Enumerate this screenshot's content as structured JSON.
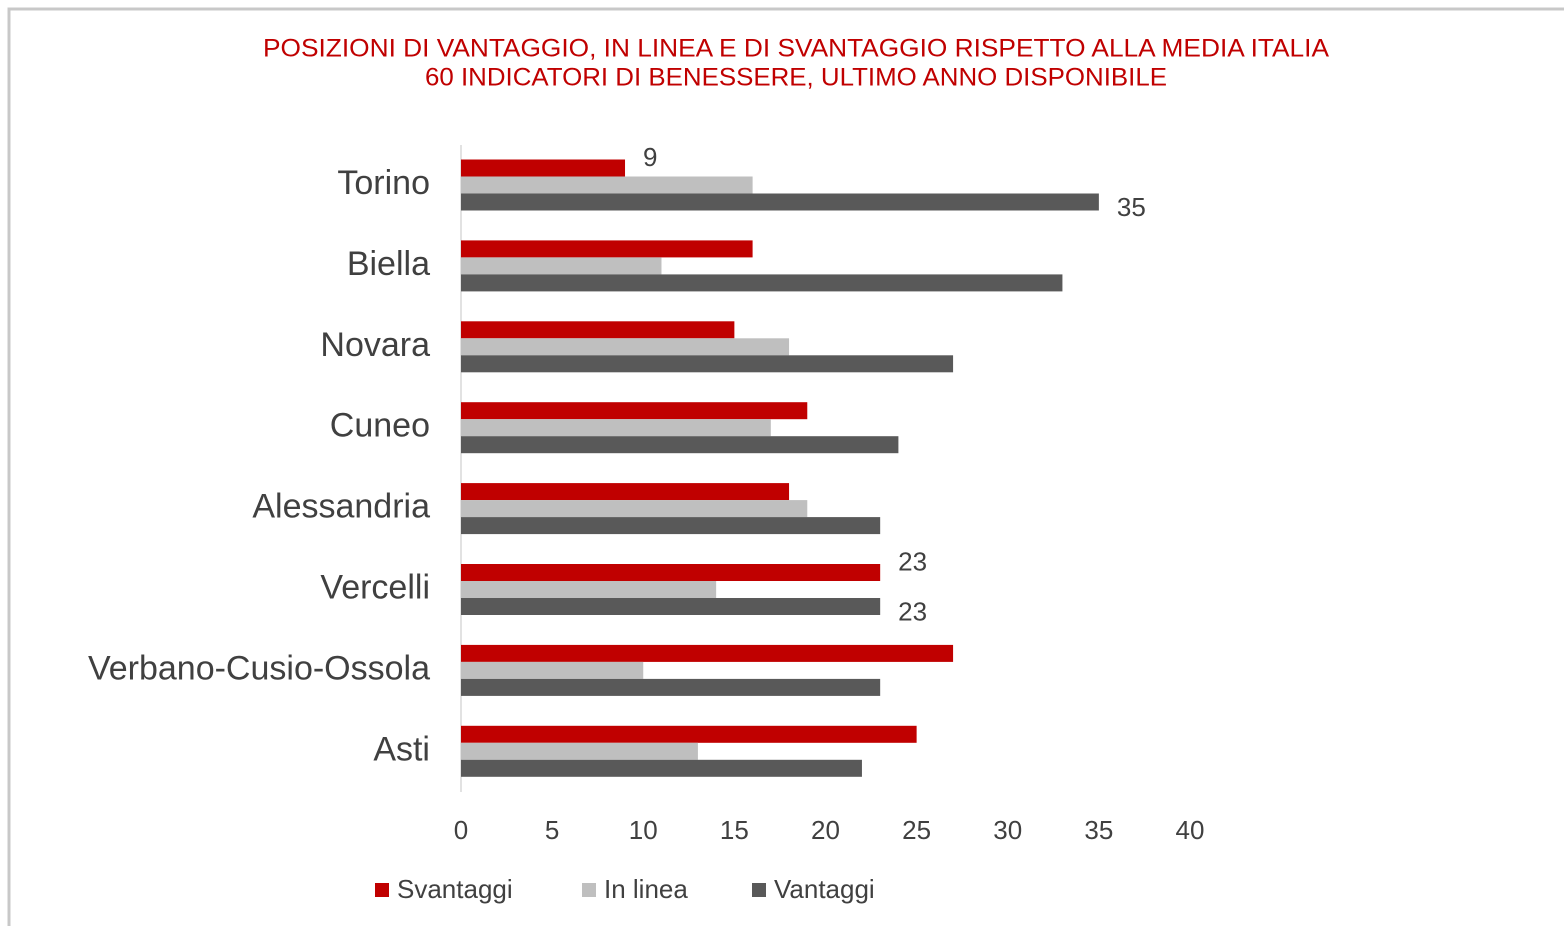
{
  "chart_data": {
    "type": "hbar",
    "title": "POSIZIONI DI VANTAGGIO, IN LINEA E DI SVANTAGGIO RISPETTO ALLA MEDIA ITALIA",
    "subtitle": "60 INDICATORI DI BENESSERE, ULTIMO ANNO DISPONIBILE",
    "categories": [
      "Torino",
      "Biella",
      "Novara",
      "Cuneo",
      "Alessandria",
      "Vercelli",
      "Verbano-Cusio-Ossola",
      "Asti"
    ],
    "series": [
      {
        "name": "Svantaggi",
        "color": "#c00000",
        "values": [
          9,
          16,
          15,
          19,
          18,
          23,
          27,
          25
        ],
        "value_labels": [
          "9",
          null,
          null,
          null,
          null,
          "23",
          null,
          null
        ]
      },
      {
        "name": "In linea",
        "color": "#bfbfbf",
        "values": [
          16,
          11,
          18,
          17,
          19,
          14,
          10,
          13
        ]
      },
      {
        "name": "Vantaggi",
        "color": "#595959",
        "values": [
          35,
          33,
          27,
          24,
          23,
          23,
          23,
          22
        ],
        "value_labels": [
          "35",
          null,
          null,
          null,
          null,
          "23",
          null,
          null
        ]
      }
    ],
    "xlim": [
      0,
      40
    ],
    "xticks": [
      0,
      5,
      10,
      15,
      20,
      25,
      30,
      35,
      40
    ],
    "legend": "bottom"
  }
}
